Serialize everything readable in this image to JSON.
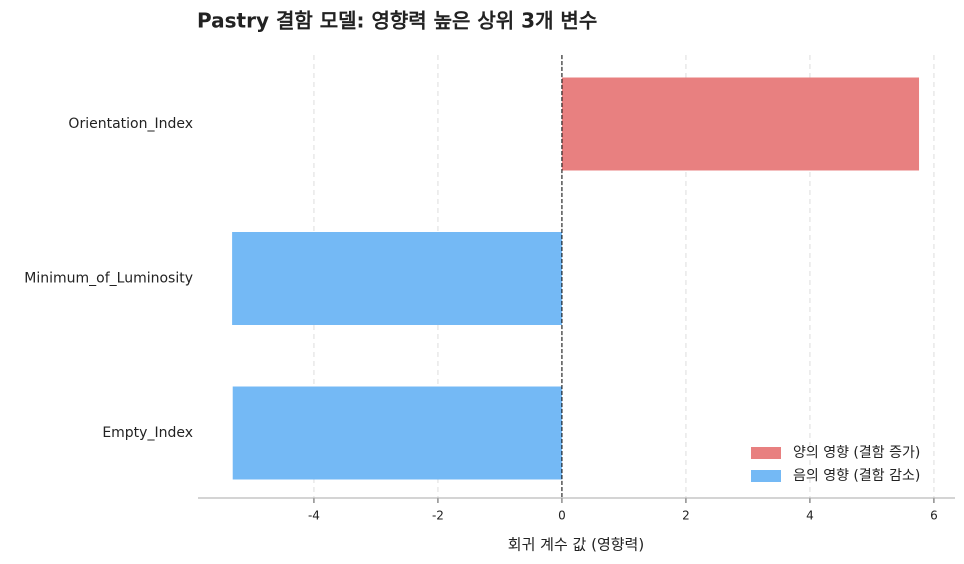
{
  "chart_data": {
    "type": "barh",
    "title": "Pastry 결함 모델: 영향력 높은 상위 3개 변수",
    "x_label": "회귀 계수 값 (영향력)",
    "categories": [
      "Orientation_Index",
      "Minimum_of_Luminosity",
      "Empty_Index"
    ],
    "series": [
      {
        "name": "양의 영향 (결함 증가)",
        "color": "#e88080",
        "values": [
          5.76,
          null,
          null
        ]
      },
      {
        "name": "음의 영향 (결함 감소)",
        "color": "#74b9f5",
        "values": [
          null,
          -5.32,
          -5.31
        ]
      }
    ],
    "xlim": [
      -5.87,
      6.34
    ],
    "xticks": [
      -4,
      -2,
      0,
      2,
      4,
      6
    ],
    "grid": true,
    "legend": "lower right"
  }
}
